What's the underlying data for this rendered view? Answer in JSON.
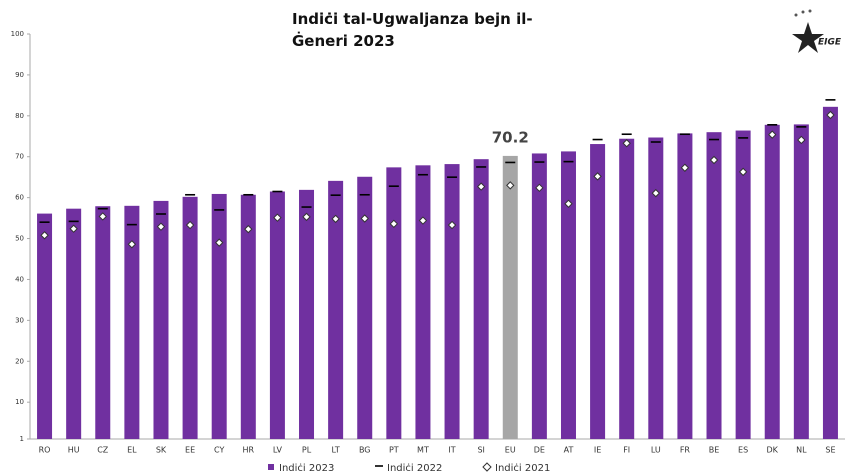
{
  "chart_data": {
    "type": "bar",
    "title": "Indiċi tal-Ugwaljanza bejn il-Ġeneri 2023",
    "logo": "EIGE",
    "categories": [
      "RO",
      "HU",
      "CZ",
      "EL",
      "SK",
      "EE",
      "CY",
      "HR",
      "LV",
      "PL",
      "LT",
      "BG",
      "PT",
      "MT",
      "IT",
      "SI",
      "EU",
      "DE",
      "AT",
      "IE",
      "FI",
      "LU",
      "FR",
      "BE",
      "ES",
      "DK",
      "NL",
      "SE"
    ],
    "series": [
      {
        "name": "Indiċi 2023",
        "color": "#7030a0",
        "marker": "bar",
        "highlight": {
          "category": "EU",
          "color": "#a6a6a6"
        },
        "values": [
          56.1,
          57.3,
          57.9,
          58.0,
          59.2,
          60.2,
          60.9,
          60.7,
          61.5,
          61.9,
          64.1,
          65.1,
          67.4,
          67.9,
          68.2,
          69.4,
          70.2,
          70.8,
          71.3,
          73.1,
          74.4,
          74.7,
          75.7,
          76.0,
          76.4,
          77.8,
          77.9,
          82.2
        ]
      },
      {
        "name": "Indiċi 2022",
        "color": "#000000",
        "marker": "dash",
        "values": [
          54.0,
          54.2,
          57.3,
          53.4,
          56.0,
          60.7,
          57.0,
          60.7,
          61.5,
          57.7,
          60.6,
          60.7,
          62.8,
          65.6,
          65.0,
          67.5,
          68.6,
          68.7,
          68.8,
          74.2,
          75.5,
          73.6,
          75.5,
          74.2,
          74.6,
          77.8,
          77.3,
          83.9
        ]
      },
      {
        "name": "Indiċi 2021",
        "color": "#ffffff",
        "marker": "diamond",
        "values": [
          50.8,
          52.4,
          55.4,
          48.6,
          52.9,
          53.3,
          49.0,
          52.3,
          55.1,
          55.3,
          54.8,
          54.9,
          53.6,
          54.4,
          53.3,
          62.7,
          63.0,
          62.4,
          58.5,
          65.2,
          73.3,
          61.1,
          67.3,
          69.2,
          66.3,
          75.4,
          74.1,
          80.2
        ]
      }
    ],
    "annotations": [
      {
        "category": "EU",
        "label": "70.2"
      }
    ],
    "ylim": [
      1,
      100
    ],
    "yticks": [
      1,
      10,
      20,
      30,
      40,
      50,
      60,
      70,
      80,
      90,
      100
    ],
    "grid": false
  }
}
